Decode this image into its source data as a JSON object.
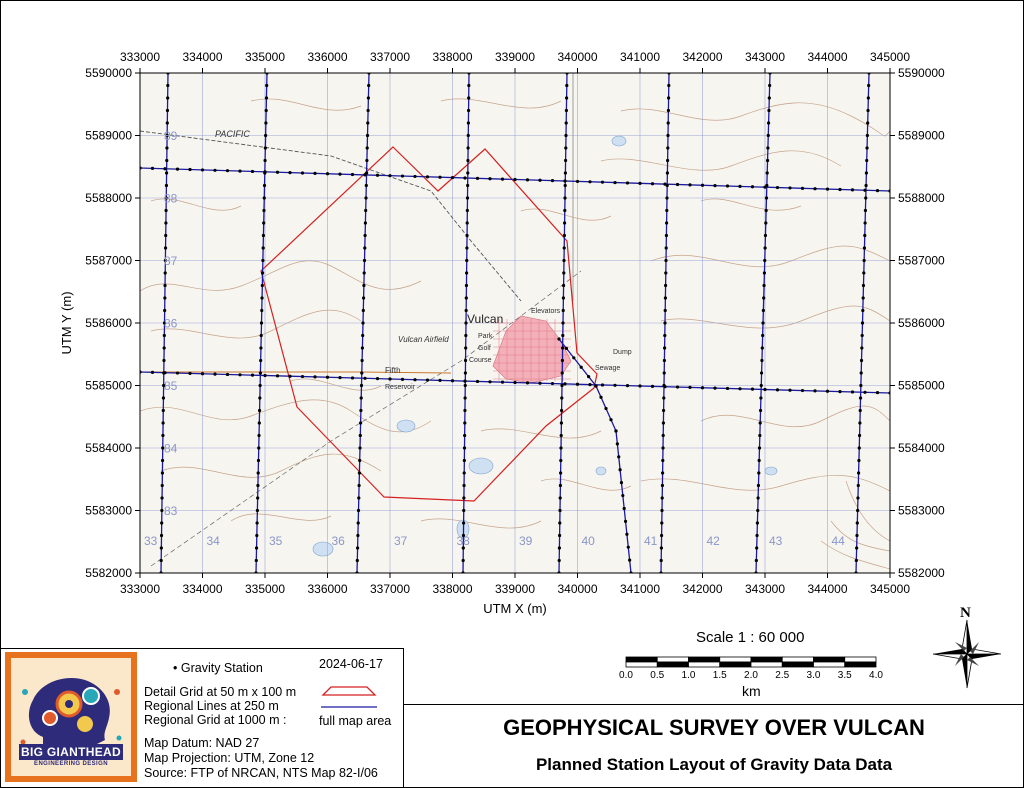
{
  "map": {
    "x_axis_label": "UTM X (m)",
    "y_axis_label": "UTM Y (m)",
    "x_ticks": [
      "333000",
      "334000",
      "335000",
      "336000",
      "337000",
      "338000",
      "339000",
      "340000",
      "341000",
      "342000",
      "343000",
      "344000",
      "345000"
    ],
    "y_ticks": [
      "5590000",
      "5589000",
      "5588000",
      "5587000",
      "5586000",
      "5585000",
      "5584000",
      "5583000",
      "5582000"
    ],
    "town_label": "Vulcan",
    "place_labels": [
      "PACIFIC",
      "Vulcan Airfield",
      "Park",
      "Golf",
      "Course",
      "Elevators",
      "Dump",
      "Sewage",
      "Fifth",
      "Reservoir"
    ],
    "grid_labels_y": [
      "89",
      "88",
      "87",
      "86",
      "85",
      "84",
      "83"
    ],
    "grid_labels_x": [
      "33",
      "34",
      "35",
      "36",
      "37",
      "38",
      "39",
      "40",
      "41",
      "42",
      "43",
      "44"
    ],
    "colors": {
      "detail_grid": "#d42020",
      "regional_line": "#1a1aa0",
      "station": "#000000",
      "grid": "#9aa6d8",
      "contour": "#b58a6a"
    }
  },
  "scale": {
    "label": "Scale 1 : 60 000",
    "ticks": [
      "0.0",
      "0.5",
      "1.0",
      "1.5",
      "2.0",
      "2.5",
      "3.0",
      "3.5",
      "4.0"
    ],
    "unit": "km"
  },
  "north_arrow": {
    "label": "N",
    "icon": "compass-rose-icon"
  },
  "legend": {
    "station": "Gravity Station",
    "date": "2024-06-17",
    "detail_grid": "Detail Grid at 50 m x 100 m",
    "regional_lines": "Regional Lines at 250 m",
    "regional_grid": "Regional Grid at 1000 m :",
    "full_map": "full map area",
    "datum": "Map Datum: NAD 27",
    "projection": "Map Projection: UTM, Zone 12",
    "source": "Source: FTP of NRCAN, NTS Map 82-I/06"
  },
  "logo": {
    "line1": "BIG GIANTHEAD",
    "line2": "ENGINEERING DESIGN"
  },
  "title": {
    "main": "GEOPHYSICAL SURVEY OVER VULCAN",
    "sub": "Planned Station Layout of Gravity Data Data"
  }
}
